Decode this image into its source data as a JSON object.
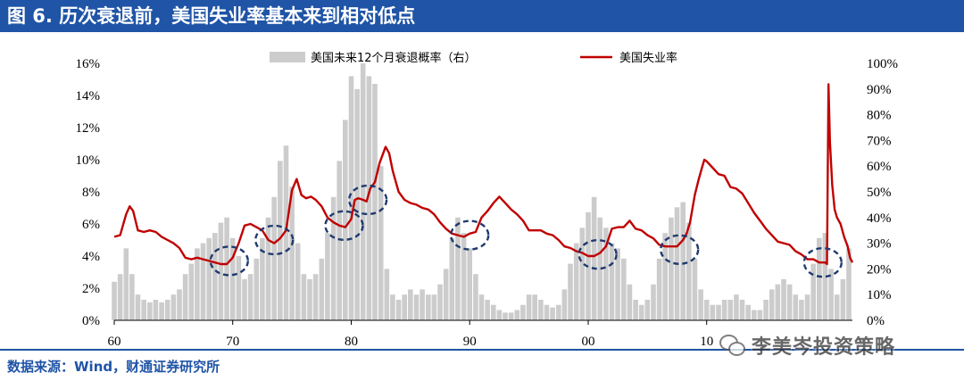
{
  "header": {
    "title": "图 6. 历次衰退前，美国失业率基本来到相对低点"
  },
  "footer": {
    "source": "数据来源：Wind，财通证券研究所"
  },
  "watermark": {
    "text": "李美岑投资策略",
    "icon": "wechat-icon"
  },
  "colors": {
    "title_bg": "#1f54a6",
    "unemployment_line": "#c00000",
    "recession_bars": "#cccccc",
    "circles": "#1f3a6e",
    "rule": "#1f54a6"
  },
  "chart_data": {
    "type": "line",
    "title": "",
    "xlabel": "",
    "ylabel": "",
    "x_ticks": [
      "60",
      "70",
      "80",
      "90",
      "00",
      "10"
    ],
    "x_range": [
      1960,
      2022.3
    ],
    "y_left_ticks": [
      "0%",
      "2%",
      "4%",
      "6%",
      "8%",
      "10%",
      "12%",
      "14%",
      "16%"
    ],
    "y_left_range": [
      0,
      16
    ],
    "y_right_ticks": [
      "0%",
      "10%",
      "20%",
      "30%",
      "40%",
      "50%",
      "60%",
      "70%",
      "80%",
      "90%",
      "100%"
    ],
    "y_right_range": [
      0,
      100
    ],
    "legend": {
      "position": "top",
      "entries": [
        "美国未来12个月衰退概率（右）",
        "美国失业率"
      ]
    },
    "grid": false,
    "series": [
      {
        "name": "美国未来12个月衰退概率（右）",
        "type": "bar",
        "axis": "right",
        "x": [
          1960,
          1960.5,
          1961,
          1961.5,
          1962,
          1962.5,
          1963,
          1963.5,
          1964,
          1964.5,
          1965,
          1965.5,
          1966,
          1966.5,
          1967,
          1967.5,
          1968,
          1968.5,
          1969,
          1969.5,
          1970,
          1970.5,
          1971,
          1971.5,
          1972,
          1972.5,
          1973,
          1973.5,
          1974,
          1974.5,
          1975,
          1975.5,
          1976,
          1976.5,
          1977,
          1977.5,
          1978,
          1978.5,
          1979,
          1979.5,
          1980,
          1980.5,
          1981,
          1981.5,
          1982,
          1982.5,
          1983,
          1983.5,
          1984,
          1984.5,
          1985,
          1985.5,
          1986,
          1986.5,
          1987,
          1987.5,
          1988,
          1988.5,
          1989,
          1989.5,
          1990,
          1990.5,
          1991,
          1991.5,
          1992,
          1992.5,
          1993,
          1993.5,
          1994,
          1994.5,
          1995,
          1995.5,
          1996,
          1996.5,
          1997,
          1997.5,
          1998,
          1998.5,
          1999,
          1999.5,
          2000,
          2000.5,
          2001,
          2001.5,
          2002,
          2002.5,
          2003,
          2003.5,
          2004,
          2004.5,
          2005,
          2005.5,
          2006,
          2006.5,
          2007,
          2007.5,
          2008,
          2008.5,
          2009,
          2009.5,
          2010,
          2010.5,
          2011,
          2011.5,
          2012,
          2012.5,
          2013,
          2013.5,
          2014,
          2014.5,
          2015,
          2015.5,
          2016,
          2016.5,
          2017,
          2017.5,
          2018,
          2018.5,
          2019,
          2019.5,
          2020,
          2020.5,
          2021,
          2021.5,
          2022
        ],
        "values": [
          15,
          18,
          28,
          18,
          10,
          8,
          7,
          8,
          7,
          8,
          10,
          12,
          18,
          22,
          28,
          30,
          32,
          34,
          38,
          40,
          32,
          25,
          16,
          18,
          24,
          32,
          40,
          48,
          62,
          68,
          52,
          30,
          18,
          16,
          18,
          24,
          34,
          48,
          62,
          78,
          95,
          90,
          100,
          95,
          92,
          60,
          20,
          10,
          8,
          10,
          12,
          10,
          12,
          10,
          10,
          14,
          20,
          32,
          40,
          34,
          28,
          18,
          10,
          8,
          6,
          4,
          3,
          3,
          4,
          6,
          10,
          10,
          8,
          6,
          5,
          6,
          12,
          22,
          30,
          36,
          42,
          48,
          40,
          36,
          30,
          28,
          24,
          14,
          8,
          6,
          8,
          14,
          24,
          34,
          40,
          44,
          46,
          38,
          24,
          12,
          8,
          6,
          6,
          8,
          8,
          10,
          8,
          6,
          4,
          4,
          8,
          12,
          14,
          16,
          14,
          10,
          8,
          10,
          22,
          32,
          34,
          20,
          10,
          16,
          28
        ]
      },
      {
        "name": "美国失业率",
        "type": "line",
        "axis": "left",
        "x": [
          1960.0,
          1960.5,
          1961.0,
          1961.3,
          1961.6,
          1962.0,
          1962.5,
          1963.0,
          1963.5,
          1964.0,
          1964.5,
          1965.0,
          1965.5,
          1966.0,
          1966.5,
          1967.0,
          1967.5,
          1968.0,
          1968.5,
          1969.0,
          1969.5,
          1970.0,
          1970.5,
          1971.0,
          1971.5,
          1972.0,
          1972.5,
          1973.0,
          1973.5,
          1974.0,
          1974.5,
          1975.0,
          1975.4,
          1975.8,
          1976.2,
          1976.6,
          1977.0,
          1977.5,
          1978.0,
          1978.5,
          1979.0,
          1979.5,
          1980.0,
          1980.3,
          1980.6,
          1981.0,
          1981.3,
          1981.6,
          1982.0,
          1982.4,
          1982.7,
          1982.9,
          1983.2,
          1983.5,
          1984.0,
          1984.5,
          1985.0,
          1985.5,
          1986.0,
          1986.5,
          1987.0,
          1987.5,
          1988.0,
          1988.5,
          1989.0,
          1989.5,
          1990.0,
          1990.5,
          1991.0,
          1991.5,
          1992.0,
          1992.5,
          1993.0,
          1993.5,
          1994.0,
          1994.5,
          1995.0,
          1995.5,
          1996.0,
          1996.5,
          1997.0,
          1997.5,
          1998.0,
          1998.5,
          1999.0,
          1999.5,
          2000.0,
          2000.5,
          2001.0,
          2001.5,
          2002.0,
          2002.5,
          2003.0,
          2003.5,
          2004.0,
          2004.5,
          2005.0,
          2005.5,
          2006.0,
          2006.5,
          2007.0,
          2007.5,
          2008.0,
          2008.3,
          2008.6,
          2009.0,
          2009.3,
          2009.6,
          2009.8,
          2010.0,
          2010.5,
          2011.0,
          2011.5,
          2012.0,
          2012.5,
          2013.0,
          2013.5,
          2014.0,
          2014.5,
          2015.0,
          2015.5,
          2016.0,
          2016.5,
          2017.0,
          2017.5,
          2018.0,
          2018.5,
          2019.0,
          2019.5,
          2020.0,
          2020.15,
          2020.28,
          2020.4,
          2020.6,
          2020.8,
          2021.0,
          2021.3,
          2021.6,
          2021.9,
          2022.1,
          2022.3
        ],
        "values": [
          5.2,
          5.3,
          6.6,
          7.1,
          6.8,
          5.6,
          5.5,
          5.6,
          5.5,
          5.2,
          5.0,
          4.8,
          4.5,
          3.9,
          3.8,
          3.9,
          3.8,
          3.7,
          3.6,
          3.5,
          3.5,
          3.9,
          4.8,
          5.9,
          6.0,
          5.8,
          5.6,
          5.0,
          4.8,
          5.1,
          5.6,
          8.1,
          8.8,
          7.8,
          7.6,
          7.7,
          7.5,
          7.1,
          6.4,
          6.1,
          5.9,
          5.8,
          6.3,
          7.5,
          7.6,
          7.5,
          7.4,
          8.2,
          8.6,
          9.8,
          10.4,
          10.8,
          10.4,
          9.3,
          8.0,
          7.5,
          7.3,
          7.2,
          7.0,
          6.9,
          6.6,
          6.1,
          5.7,
          5.4,
          5.3,
          5.2,
          5.4,
          5.5,
          6.4,
          6.8,
          7.3,
          7.7,
          7.3,
          6.9,
          6.6,
          6.2,
          5.6,
          5.6,
          5.6,
          5.4,
          5.3,
          5.0,
          4.6,
          4.5,
          4.3,
          4.2,
          4.0,
          4.0,
          4.2,
          4.6,
          5.7,
          5.8,
          5.8,
          6.2,
          5.7,
          5.6,
          5.3,
          5.1,
          4.7,
          4.6,
          4.6,
          4.6,
          5.0,
          5.4,
          6.1,
          7.8,
          8.7,
          9.5,
          10.0,
          9.9,
          9.5,
          9.1,
          9.0,
          8.3,
          8.2,
          7.9,
          7.3,
          6.7,
          6.2,
          5.7,
          5.3,
          4.9,
          4.8,
          4.7,
          4.3,
          4.1,
          3.8,
          3.8,
          3.6,
          3.6,
          3.5,
          14.7,
          11.1,
          8.4,
          6.9,
          6.4,
          6.0,
          5.2,
          4.6,
          3.9,
          3.6
        ]
      }
    ],
    "annotations": [
      {
        "type": "dashed-ellipse",
        "x": 1969.7,
        "y": 3.7
      },
      {
        "type": "dashed-ellipse",
        "x": 1973.5,
        "y": 5.0
      },
      {
        "type": "dashed-ellipse",
        "x": 1979.4,
        "y": 5.9
      },
      {
        "type": "dashed-ellipse",
        "x": 1981.4,
        "y": 7.5
      },
      {
        "type": "dashed-ellipse",
        "x": 1990.0,
        "y": 5.3
      },
      {
        "type": "dashed-ellipse",
        "x": 2000.8,
        "y": 4.1
      },
      {
        "type": "dashed-ellipse",
        "x": 2007.7,
        "y": 4.4
      },
      {
        "type": "dashed-ellipse",
        "x": 2019.8,
        "y": 3.6
      }
    ]
  }
}
